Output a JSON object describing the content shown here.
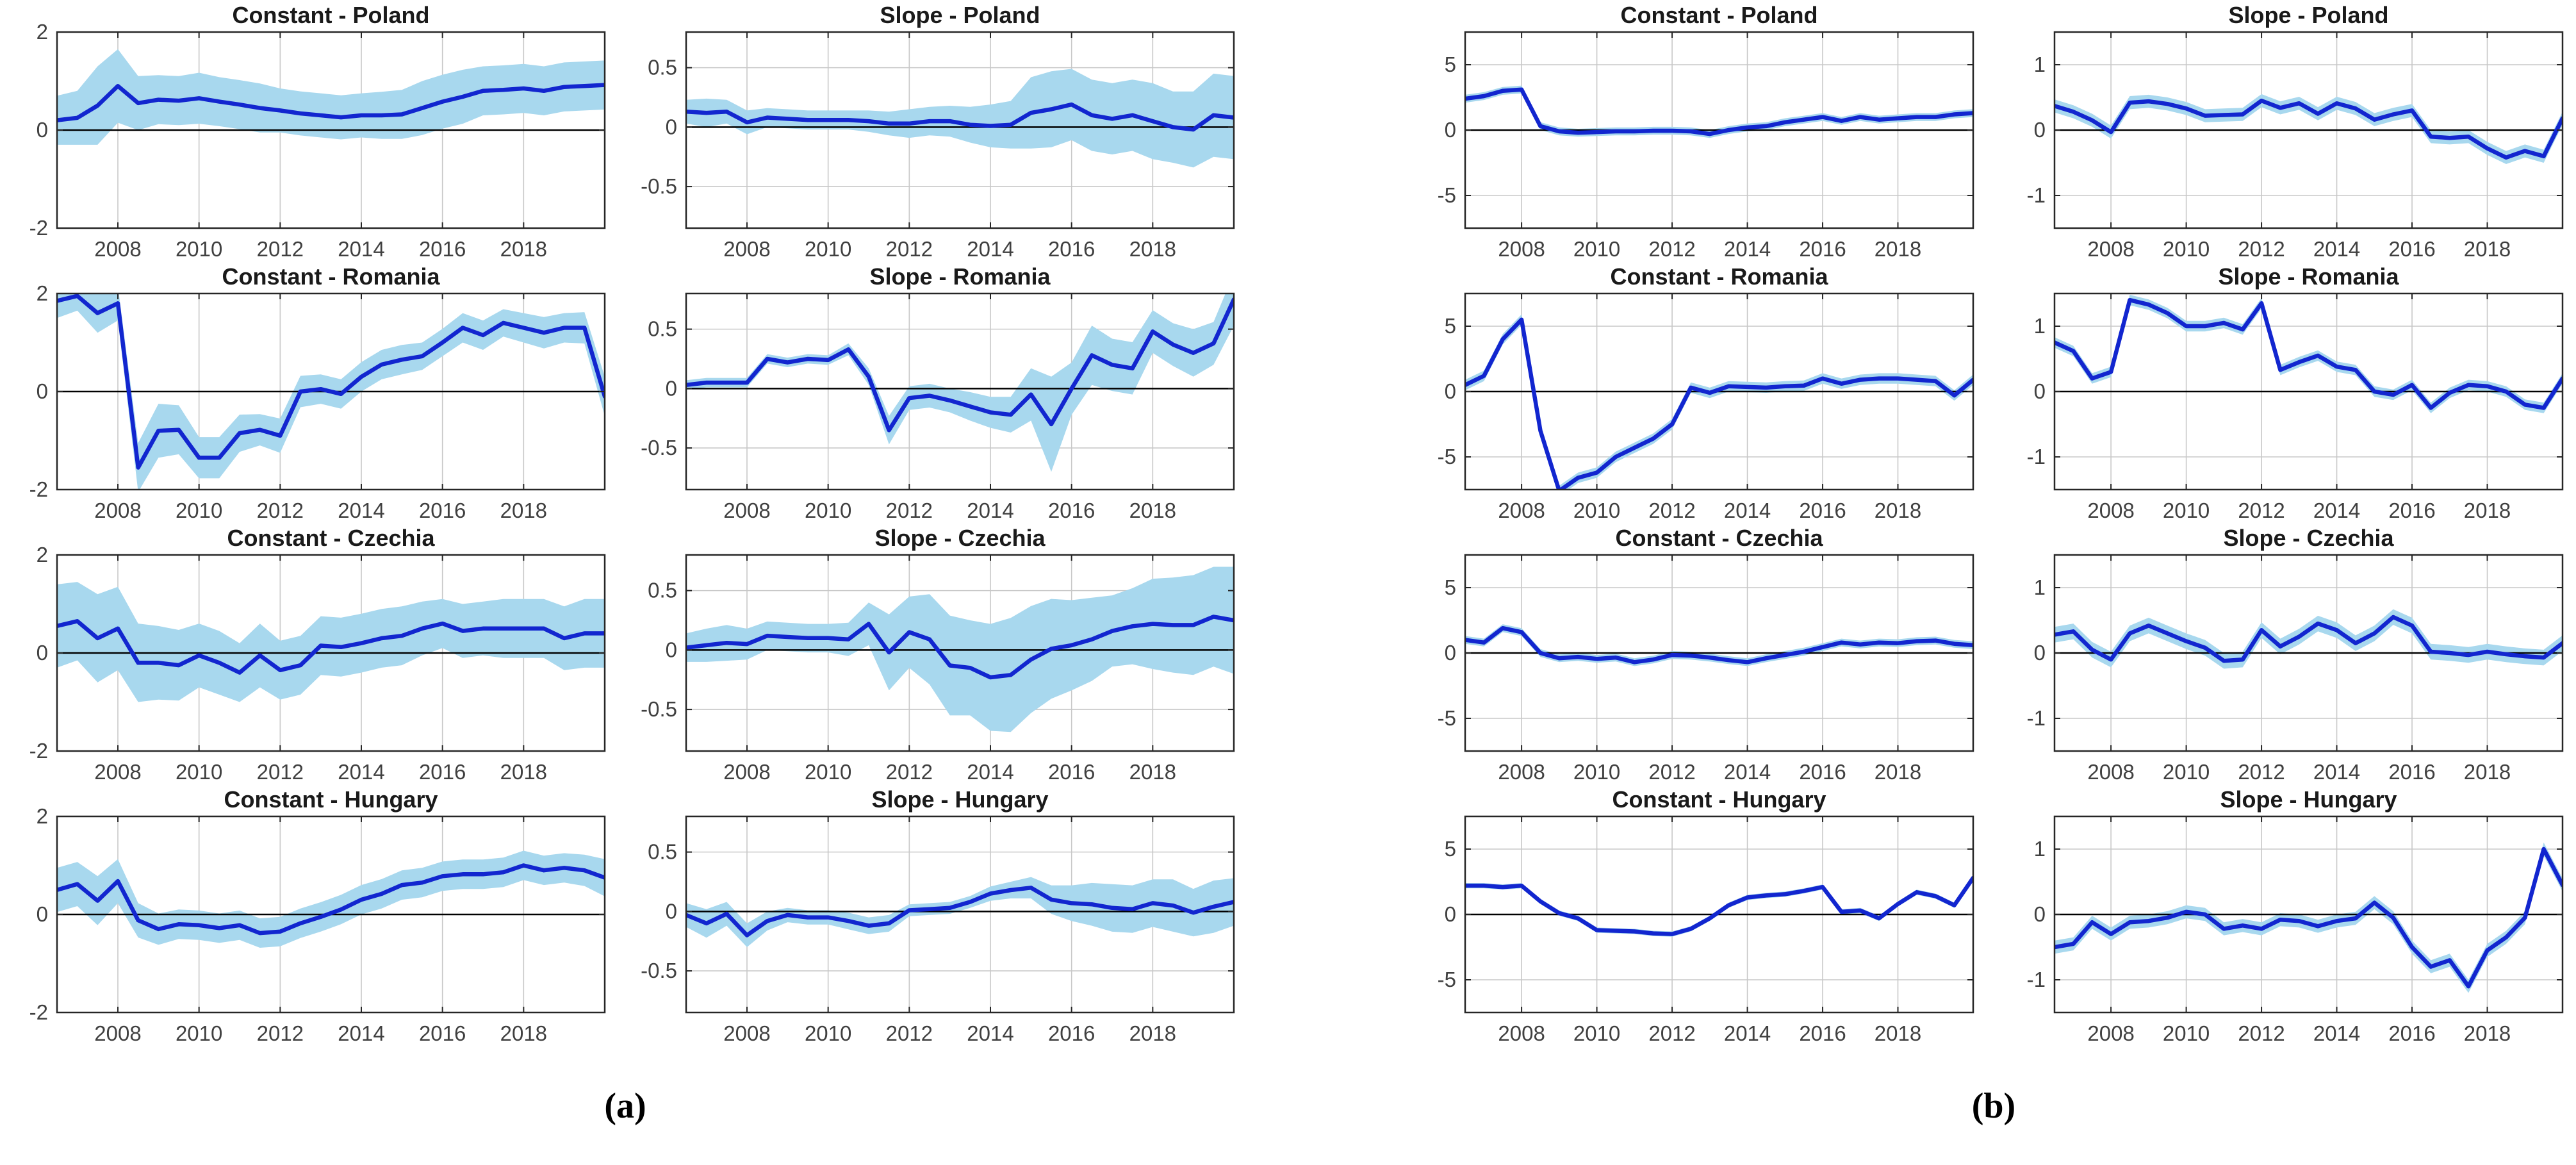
{
  "chart_data": {
    "type": "line",
    "description": "Time-varying coefficient estimates (Constant and Slope) with confidence bands for Poland, Romania, Czechia and Hungary; panel (a) and panel (b).",
    "line_color": "#1226cf",
    "band_color": "#a8d8ee",
    "grid_color": "#c8c8c8",
    "zero_line_color": "#000000",
    "tick_label_color": "#404040",
    "legend": "none",
    "x_axis": {
      "start": 2006.5,
      "step": 0.5,
      "min": 2006.5,
      "max": 2020,
      "ticks": [
        2008,
        2010,
        2012,
        2014,
        2016,
        2018
      ]
    },
    "groups": [
      {
        "caption": "(a)",
        "charts": [
          {
            "title": "Constant - Poland",
            "ylim": [
              -2,
              2
            ],
            "yticks": [
              2,
              0,
              -2
            ],
            "values": [
              0.2,
              0.25,
              0.5,
              0.9,
              0.55,
              0.62,
              0.6,
              0.65,
              0.58,
              0.52,
              0.45,
              0.4,
              0.34,
              0.3,
              0.26,
              0.3,
              0.3,
              0.32,
              0.45,
              0.58,
              0.68,
              0.8,
              0.82,
              0.85,
              0.8,
              0.88,
              0.9,
              0.92
            ],
            "band": [
              0.5,
              0.55,
              0.8,
              0.75,
              0.55,
              0.5,
              0.5,
              0.52,
              0.5,
              0.5,
              0.5,
              0.45,
              0.45,
              0.45,
              0.45,
              0.45,
              0.48,
              0.5,
              0.55,
              0.55,
              0.55,
              0.5,
              0.5,
              0.5,
              0.5,
              0.5,
              0.5,
              0.5
            ]
          },
          {
            "title": "Slope - Poland",
            "ylim": [
              -0.85,
              0.8
            ],
            "yticks": [
              0.5,
              0,
              -0.5
            ],
            "values": [
              0.13,
              0.12,
              0.13,
              0.04,
              0.08,
              0.07,
              0.06,
              0.06,
              0.06,
              0.05,
              0.03,
              0.03,
              0.05,
              0.05,
              0.02,
              0.01,
              0.02,
              0.12,
              0.15,
              0.19,
              0.1,
              0.07,
              0.1,
              0.05,
              0.0,
              -0.02,
              0.1,
              0.08
            ],
            "band": [
              0.1,
              0.12,
              0.1,
              0.1,
              0.08,
              0.08,
              0.08,
              0.08,
              0.08,
              0.09,
              0.1,
              0.12,
              0.12,
              0.13,
              0.15,
              0.18,
              0.2,
              0.3,
              0.32,
              0.3,
              0.3,
              0.3,
              0.3,
              0.32,
              0.3,
              0.32,
              0.35,
              0.35
            ]
          },
          {
            "title": "Constant - Romania",
            "ylim": [
              -2,
              2
            ],
            "yticks": [
              2,
              0,
              -2
            ],
            "values": [
              1.85,
              1.95,
              1.6,
              1.8,
              -1.55,
              -0.8,
              -0.78,
              -1.35,
              -1.35,
              -0.85,
              -0.78,
              -0.9,
              0.0,
              0.05,
              -0.05,
              0.3,
              0.55,
              0.65,
              0.72,
              1.0,
              1.3,
              1.15,
              1.4,
              1.3,
              1.2,
              1.3,
              1.3,
              -0.1
            ],
            "band": [
              0.35,
              0.3,
              0.4,
              0.35,
              0.5,
              0.55,
              0.5,
              0.42,
              0.42,
              0.38,
              0.32,
              0.35,
              0.32,
              0.3,
              0.3,
              0.3,
              0.3,
              0.3,
              0.28,
              0.28,
              0.3,
              0.3,
              0.28,
              0.3,
              0.32,
              0.3,
              0.32,
              0.4
            ]
          },
          {
            "title": "Slope - Romania",
            "ylim": [
              -0.85,
              0.8
            ],
            "yticks": [
              0.5,
              0,
              -0.5
            ],
            "values": [
              0.03,
              0.05,
              0.05,
              0.05,
              0.25,
              0.22,
              0.25,
              0.24,
              0.33,
              0.1,
              -0.35,
              -0.08,
              -0.06,
              -0.1,
              -0.15,
              -0.2,
              -0.22,
              -0.05,
              -0.3,
              0.0,
              0.28,
              0.2,
              0.17,
              0.48,
              0.37,
              0.3,
              0.38,
              0.75
            ],
            "band": [
              0.04,
              0.04,
              0.04,
              0.04,
              0.04,
              0.04,
              0.04,
              0.04,
              0.05,
              0.07,
              0.12,
              0.1,
              0.1,
              0.1,
              0.12,
              0.13,
              0.15,
              0.22,
              0.4,
              0.22,
              0.25,
              0.22,
              0.22,
              0.18,
              0.18,
              0.2,
              0.18,
              0.22
            ]
          },
          {
            "title": "Constant - Czechia",
            "ylim": [
              -2,
              2
            ],
            "yticks": [
              2,
              0,
              -2
            ],
            "values": [
              0.55,
              0.65,
              0.3,
              0.5,
              -0.2,
              -0.2,
              -0.25,
              -0.05,
              -0.2,
              -0.4,
              -0.05,
              -0.35,
              -0.25,
              0.15,
              0.12,
              0.2,
              0.3,
              0.35,
              0.5,
              0.6,
              0.45,
              0.5,
              0.5,
              0.5,
              0.5,
              0.3,
              0.4,
              0.4
            ],
            "band": [
              0.85,
              0.8,
              0.9,
              0.85,
              0.8,
              0.75,
              0.72,
              0.65,
              0.65,
              0.6,
              0.65,
              0.6,
              0.6,
              0.6,
              0.6,
              0.6,
              0.6,
              0.6,
              0.55,
              0.5,
              0.55,
              0.55,
              0.6,
              0.6,
              0.6,
              0.65,
              0.7,
              0.7
            ]
          },
          {
            "title": "Slope - Czechia",
            "ylim": [
              -0.85,
              0.8
            ],
            "yticks": [
              0.5,
              0,
              -0.5
            ],
            "values": [
              0.02,
              0.04,
              0.06,
              0.05,
              0.12,
              0.11,
              0.1,
              0.1,
              0.09,
              0.22,
              -0.02,
              0.15,
              0.09,
              -0.13,
              -0.15,
              -0.23,
              -0.21,
              -0.08,
              0.01,
              0.04,
              0.09,
              0.16,
              0.2,
              0.22,
              0.21,
              0.21,
              0.28,
              0.25
            ],
            "band": [
              0.12,
              0.14,
              0.15,
              0.13,
              0.12,
              0.12,
              0.12,
              0.12,
              0.14,
              0.18,
              0.32,
              0.3,
              0.38,
              0.42,
              0.4,
              0.45,
              0.48,
              0.45,
              0.42,
              0.38,
              0.35,
              0.3,
              0.32,
              0.38,
              0.4,
              0.42,
              0.42,
              0.45
            ]
          },
          {
            "title": "Constant - Hungary",
            "ylim": [
              -2,
              2
            ],
            "yticks": [
              2,
              0,
              -2
            ],
            "values": [
              0.5,
              0.62,
              0.28,
              0.68,
              -0.12,
              -0.3,
              -0.2,
              -0.22,
              -0.28,
              -0.22,
              -0.38,
              -0.35,
              -0.18,
              -0.05,
              0.1,
              0.3,
              0.42,
              0.6,
              0.65,
              0.78,
              0.82,
              0.82,
              0.86,
              1.0,
              0.9,
              0.95,
              0.9,
              0.75
            ],
            "band": [
              0.45,
              0.45,
              0.5,
              0.45,
              0.35,
              0.32,
              0.3,
              0.3,
              0.3,
              0.3,
              0.3,
              0.3,
              0.3,
              0.3,
              0.3,
              0.3,
              0.3,
              0.3,
              0.3,
              0.3,
              0.3,
              0.3,
              0.3,
              0.3,
              0.3,
              0.3,
              0.32,
              0.38
            ]
          },
          {
            "title": "Slope - Hungary",
            "ylim": [
              -0.85,
              0.8
            ],
            "yticks": [
              0.5,
              0,
              -0.5
            ],
            "values": [
              -0.03,
              -0.1,
              -0.02,
              -0.2,
              -0.08,
              -0.03,
              -0.05,
              -0.05,
              -0.08,
              -0.12,
              -0.1,
              0.01,
              0.02,
              0.03,
              0.08,
              0.15,
              0.18,
              0.2,
              0.1,
              0.07,
              0.06,
              0.03,
              0.02,
              0.07,
              0.05,
              -0.01,
              0.04,
              0.08
            ],
            "band": [
              0.1,
              0.12,
              0.1,
              0.1,
              0.08,
              0.06,
              0.06,
              0.06,
              0.07,
              0.07,
              0.07,
              0.05,
              0.05,
              0.05,
              0.05,
              0.06,
              0.07,
              0.09,
              0.12,
              0.15,
              0.18,
              0.2,
              0.2,
              0.2,
              0.22,
              0.2,
              0.22,
              0.2
            ]
          }
        ]
      },
      {
        "caption": "(b)",
        "charts": [
          {
            "title": "Constant - Poland",
            "ylim": [
              -7.5,
              7.5
            ],
            "yticks": [
              5,
              0,
              -5
            ],
            "values": [
              2.4,
              2.6,
              3.0,
              3.1,
              0.3,
              -0.1,
              -0.2,
              -0.15,
              -0.1,
              -0.1,
              -0.05,
              -0.05,
              -0.1,
              -0.3,
              0.0,
              0.2,
              0.3,
              0.6,
              0.8,
              1.0,
              0.7,
              1.0,
              0.8,
              0.9,
              1.0,
              1.0,
              1.2,
              1.3
            ],
            "band": 0.3
          },
          {
            "title": "Slope - Poland",
            "ylim": [
              -1.5,
              1.5
            ],
            "yticks": [
              1,
              0,
              -1
            ],
            "values": [
              0.37,
              0.28,
              0.15,
              -0.03,
              0.42,
              0.44,
              0.4,
              0.33,
              0.22,
              0.23,
              0.24,
              0.45,
              0.34,
              0.41,
              0.25,
              0.41,
              0.33,
              0.16,
              0.24,
              0.3,
              -0.1,
              -0.12,
              -0.1,
              -0.28,
              -0.42,
              -0.32,
              -0.4,
              0.18
            ],
            "band": 0.1
          },
          {
            "title": "Constant - Romania",
            "ylim": [
              -7.5,
              7.5
            ],
            "yticks": [
              5,
              0,
              -5
            ],
            "values": [
              0.5,
              1.2,
              4.0,
              5.5,
              -3.0,
              -7.6,
              -6.6,
              -6.2,
              -5.0,
              -4.3,
              -3.6,
              -2.5,
              0.3,
              -0.1,
              0.4,
              0.35,
              0.3,
              0.4,
              0.45,
              1.0,
              0.6,
              0.9,
              1.0,
              1.0,
              0.9,
              0.8,
              -0.3,
              0.9
            ],
            "band": 0.4
          },
          {
            "title": "Slope - Romania",
            "ylim": [
              -1.5,
              1.5
            ],
            "yticks": [
              1,
              0,
              -1
            ],
            "values": [
              0.75,
              0.62,
              0.2,
              0.3,
              1.4,
              1.33,
              1.2,
              1.0,
              1.0,
              1.05,
              0.95,
              1.35,
              0.33,
              0.45,
              0.55,
              0.38,
              0.33,
              0.0,
              -0.05,
              0.1,
              -0.25,
              -0.02,
              0.1,
              0.08,
              0.0,
              -0.2,
              -0.25,
              0.2
            ],
            "band": 0.08
          },
          {
            "title": "Constant - Czechia",
            "ylim": [
              -7.5,
              7.5
            ],
            "yticks": [
              5,
              0,
              -5
            ],
            "values": [
              1.0,
              0.8,
              1.9,
              1.6,
              0.0,
              -0.4,
              -0.3,
              -0.45,
              -0.35,
              -0.7,
              -0.5,
              -0.15,
              -0.2,
              -0.35,
              -0.55,
              -0.7,
              -0.4,
              -0.15,
              0.1,
              0.45,
              0.8,
              0.65,
              0.8,
              0.75,
              0.9,
              0.95,
              0.7,
              0.6
            ],
            "band": 0.3
          },
          {
            "title": "Slope - Czechia",
            "ylim": [
              -1.5,
              1.5
            ],
            "yticks": [
              1,
              0,
              -1
            ],
            "values": [
              0.28,
              0.33,
              0.05,
              -0.1,
              0.3,
              0.42,
              0.3,
              0.18,
              0.08,
              -0.12,
              -0.1,
              0.35,
              0.1,
              0.25,
              0.45,
              0.35,
              0.15,
              0.3,
              0.55,
              0.42,
              0.02,
              0.0,
              -0.03,
              0.02,
              -0.02,
              -0.05,
              -0.07,
              0.15
            ],
            "band": 0.12
          },
          {
            "title": "Constant - Hungary",
            "ylim": [
              -7.5,
              7.5
            ],
            "yticks": [
              5,
              0,
              -5
            ],
            "values": [
              2.2,
              2.2,
              2.1,
              2.2,
              1.0,
              0.1,
              -0.3,
              -1.2,
              -1.25,
              -1.3,
              -1.45,
              -1.5,
              -1.1,
              -0.3,
              0.7,
              1.3,
              1.45,
              1.55,
              1.8,
              2.1,
              0.2,
              0.3,
              -0.3,
              0.8,
              1.7,
              1.4,
              0.7,
              2.8
            ],
            "band": 0.2
          },
          {
            "title": "Slope - Hungary",
            "ylim": [
              -1.5,
              1.5
            ],
            "yticks": [
              1,
              0,
              -1
            ],
            "values": [
              -0.5,
              -0.45,
              -0.12,
              -0.3,
              -0.12,
              -0.1,
              -0.05,
              0.04,
              0.0,
              -0.22,
              -0.17,
              -0.22,
              -0.08,
              -0.1,
              -0.18,
              -0.1,
              -0.06,
              0.18,
              -0.05,
              -0.5,
              -0.8,
              -0.7,
              -1.1,
              -0.55,
              -0.35,
              -0.05,
              1.0,
              0.45
            ],
            "band": 0.1
          }
        ]
      }
    ]
  }
}
